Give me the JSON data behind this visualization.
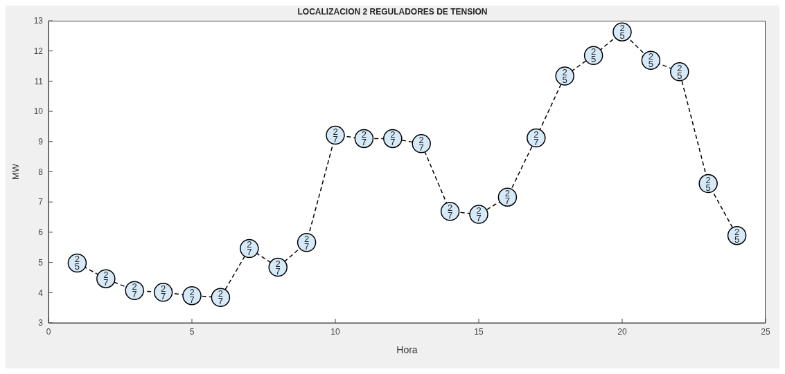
{
  "chart_data": {
    "type": "line",
    "title": "LOCALIZACION 2 REGULADORES DE TENSION",
    "xlabel": "Hora",
    "ylabel": "MW",
    "x": [
      1,
      2,
      3,
      4,
      5,
      6,
      7,
      8,
      9,
      10,
      11,
      12,
      13,
      14,
      15,
      16,
      17,
      18,
      19,
      20,
      21,
      22,
      23,
      24
    ],
    "series": [
      {
        "color": "#000000",
        "values": [
          4.98,
          4.46,
          4.07,
          4.01,
          3.9,
          3.84,
          5.46,
          4.84,
          5.66,
          9.21,
          9.1,
          9.1,
          8.93,
          6.69,
          6.59,
          7.16,
          9.12,
          11.17,
          11.85,
          12.63,
          11.69,
          11.31,
          7.61,
          5.89
        ]
      }
    ],
    "xlim": [
      0,
      25
    ],
    "xticks": [
      0,
      5,
      10,
      15,
      20,
      25
    ],
    "ylim": [
      3,
      13
    ],
    "yticks": [
      3,
      4,
      5,
      6,
      7,
      8,
      9,
      10,
      11,
      12,
      13
    ],
    "grid": false,
    "legend": false,
    "marker": "circle",
    "line_style": "dashed",
    "annotations": [
      {
        "text": "25",
        "x": 1,
        "y": 4.98
      },
      {
        "text": "27",
        "x": 2,
        "y": 4.46
      },
      {
        "text": "27",
        "x": 3,
        "y": 4.07
      },
      {
        "text": "27",
        "x": 4,
        "y": 4.01
      },
      {
        "text": "27",
        "x": 5,
        "y": 3.9
      },
      {
        "text": "27",
        "x": 6,
        "y": 3.84
      },
      {
        "text": "27",
        "x": 7,
        "y": 5.46
      },
      {
        "text": "27",
        "x": 8,
        "y": 4.84
      },
      {
        "text": "27",
        "x": 9,
        "y": 5.66
      },
      {
        "text": "27",
        "x": 10,
        "y": 9.21
      },
      {
        "text": "27",
        "x": 11,
        "y": 9.1
      },
      {
        "text": "27",
        "x": 12,
        "y": 9.1
      },
      {
        "text": "27",
        "x": 13,
        "y": 8.93
      },
      {
        "text": "27",
        "x": 14,
        "y": 6.69
      },
      {
        "text": "27",
        "x": 15,
        "y": 6.59
      },
      {
        "text": "27",
        "x": 16,
        "y": 7.16
      },
      {
        "text": "27",
        "x": 17,
        "y": 9.12
      },
      {
        "text": "25",
        "x": 18,
        "y": 11.17
      },
      {
        "text": "25",
        "x": 19,
        "y": 11.85
      },
      {
        "text": "25",
        "x": 20,
        "y": 12.63
      },
      {
        "text": "25",
        "x": 21,
        "y": 11.69
      },
      {
        "text": "25",
        "x": 22,
        "y": 11.31
      },
      {
        "text": "25",
        "x": 23,
        "y": 7.61
      },
      {
        "text": "25",
        "x": 24,
        "y": 5.89
      }
    ]
  }
}
